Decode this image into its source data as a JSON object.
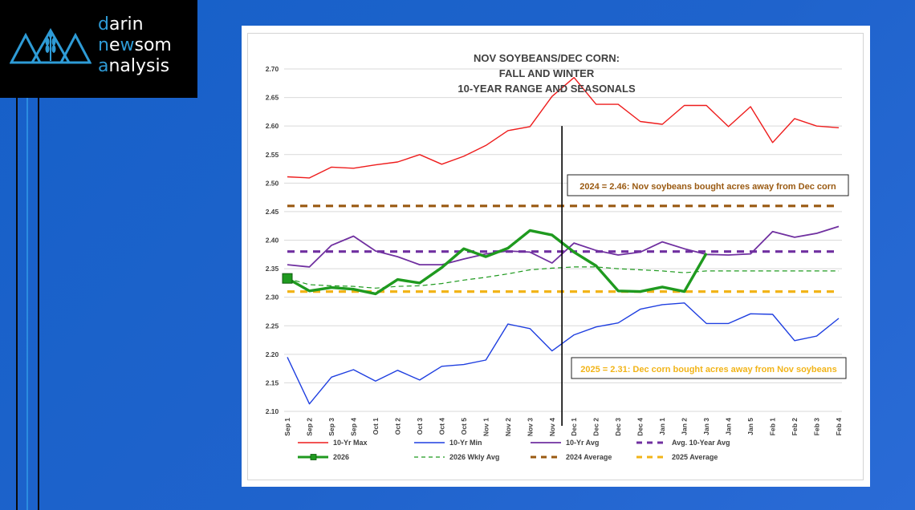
{
  "branding": {
    "line1_first": "d",
    "line1_rest": "arin",
    "line2_first": "n",
    "line2_mid": "e",
    "line2_w": "w",
    "line2_rest": "som",
    "line3_first": "a",
    "line3_rest": "nalysis",
    "colors": {
      "accent": "#2e9bd6",
      "text": "#ffffff",
      "background": "#000000"
    },
    "icon": "wheat-mountains-icon"
  },
  "chart_data": {
    "type": "line",
    "title_lines": [
      "NOV SOYBEANS/DEC CORN:",
      "FALL AND WINTER",
      "10-YEAR RANGE AND SEASONALS"
    ],
    "categories": [
      "Sep 1",
      "Sep 2",
      "Sep 3",
      "Sep 4",
      "Oct 1",
      "Oct 2",
      "Oct 3",
      "Oct 4",
      "Oct 5",
      "Nov 1",
      "Nov 2",
      "Nov 3",
      "Nov 4",
      "Dec 1",
      "Dec 2",
      "Dec 3",
      "Dec 4",
      "Jan 1",
      "Jan 2",
      "Jan 3",
      "Jan 4",
      "Jan 5",
      "Feb 1",
      "Feb 2",
      "Feb 3",
      "Feb 4"
    ],
    "ylim": [
      2.1,
      2.7
    ],
    "yticks": [
      "2.10",
      "2.15",
      "2.20",
      "2.25",
      "2.30",
      "2.35",
      "2.40",
      "2.45",
      "2.50",
      "2.55",
      "2.60",
      "2.65",
      "2.70"
    ],
    "grid": "horizontal",
    "legend_position": "bottom",
    "series": [
      {
        "name": "10-Yr Max",
        "color": "#ee1c1c",
        "style": "solid",
        "width": 1.4,
        "values": [
          2.511,
          2.509,
          2.528,
          2.526,
          2.532,
          2.537,
          2.55,
          2.533,
          2.547,
          2.566,
          2.592,
          2.599,
          2.652,
          2.685,
          2.638,
          2.638,
          2.608,
          2.603,
          2.636,
          2.636,
          2.599,
          2.634,
          2.571,
          2.613,
          2.6,
          2.597
        ]
      },
      {
        "name": "10-Yr Min",
        "color": "#1f3fe0",
        "style": "solid",
        "width": 1.4,
        "values": [
          2.195,
          2.113,
          2.16,
          2.173,
          2.153,
          2.172,
          2.155,
          2.179,
          2.182,
          2.19,
          2.253,
          2.245,
          2.206,
          2.234,
          2.248,
          2.255,
          2.279,
          2.287,
          2.29,
          2.254,
          2.254,
          2.271,
          2.27,
          2.224,
          2.232,
          2.263
        ]
      },
      {
        "name": "10-Yr Avg",
        "color": "#7030a0",
        "style": "solid",
        "width": 1.8,
        "values": [
          2.357,
          2.353,
          2.391,
          2.407,
          2.381,
          2.371,
          2.357,
          2.357,
          2.367,
          2.376,
          2.381,
          2.379,
          2.36,
          2.395,
          2.382,
          2.374,
          2.379,
          2.397,
          2.385,
          2.375,
          2.374,
          2.376,
          2.415,
          2.405,
          2.412,
          2.424
        ]
      },
      {
        "name": "Avg. 10-Year Avg",
        "color": "#7030a0",
        "style": "dashed",
        "width": 3.2,
        "values": [
          2.38,
          2.38,
          2.38,
          2.38,
          2.38,
          2.38,
          2.38,
          2.38,
          2.38,
          2.38,
          2.38,
          2.38,
          2.38,
          2.38,
          2.38,
          2.38,
          2.38,
          2.38,
          2.38,
          2.38,
          2.38,
          2.38,
          2.38,
          2.38,
          2.38,
          2.38
        ]
      },
      {
        "name": "2026",
        "color": "#1f9a1f",
        "style": "solid",
        "width": 3.4,
        "marker_first": true,
        "values": [
          2.333,
          2.311,
          2.317,
          2.314,
          2.306,
          2.331,
          2.325,
          2.352,
          2.385,
          2.371,
          2.386,
          2.417,
          2.409,
          2.379,
          2.355,
          2.311,
          2.31,
          2.318,
          2.31,
          2.377,
          null,
          null,
          null,
          null,
          null,
          null
        ]
      },
      {
        "name": "2026 Wkly Avg",
        "color": "#1f9a1f",
        "style": "dashed-thin",
        "width": 1.2,
        "values": [
          2.333,
          2.322,
          2.32,
          2.319,
          2.316,
          2.319,
          2.32,
          2.324,
          2.33,
          2.335,
          2.341,
          2.348,
          2.351,
          2.353,
          2.353,
          2.35,
          2.348,
          2.346,
          2.343,
          2.346,
          2.346,
          2.346,
          2.346,
          2.346,
          2.346,
          2.346
        ]
      },
      {
        "name": "2024 Average",
        "color": "#9a5a12",
        "style": "dashed",
        "width": 3.2,
        "values": [
          2.46,
          2.46,
          2.46,
          2.46,
          2.46,
          2.46,
          2.46,
          2.46,
          2.46,
          2.46,
          2.46,
          2.46,
          2.46,
          2.46,
          2.46,
          2.46,
          2.46,
          2.46,
          2.46,
          2.46,
          2.46,
          2.46,
          2.46,
          2.46,
          2.46,
          2.46
        ]
      },
      {
        "name": "2025 Average",
        "color": "#f2b418",
        "style": "dashed",
        "width": 3.2,
        "values": [
          2.31,
          2.31,
          2.31,
          2.31,
          2.31,
          2.31,
          2.31,
          2.31,
          2.31,
          2.31,
          2.31,
          2.31,
          2.31,
          2.31,
          2.31,
          2.31,
          2.31,
          2.31,
          2.31,
          2.31,
          2.31,
          2.31,
          2.31,
          2.31,
          2.31,
          2.31
        ]
      }
    ],
    "annotations": [
      {
        "text": "2024 = 2.46: Nov soybeans bought acres away from Dec corn",
        "color": "#9a5a12"
      },
      {
        "text": "2025 = 2.31: Dec corn bought acres away from Nov soybeans",
        "color": "#f2b418"
      }
    ],
    "marker_line_category": "Nov 4"
  }
}
